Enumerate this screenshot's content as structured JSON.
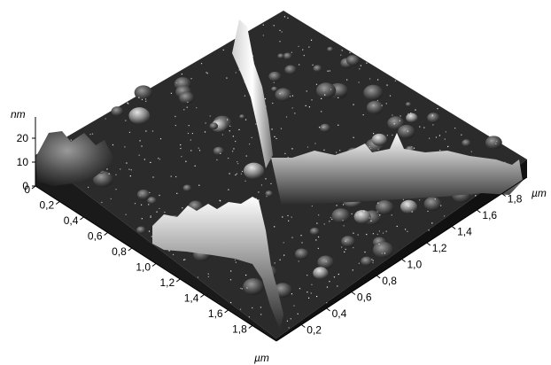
{
  "chart_data": {
    "type": "surface",
    "title": "",
    "z_axis": {
      "unit": "nm",
      "ticks": [
        "0",
        "10",
        "20"
      ],
      "range": [
        0,
        25
      ]
    },
    "left_axis": {
      "unit": "µm",
      "ticks": [
        "0",
        "0,2",
        "0,4",
        "0,6",
        "0,8",
        "1,0",
        "1,2",
        "1,4",
        "1,6",
        "1,8"
      ],
      "range": [
        0,
        2
      ]
    },
    "right_axis": {
      "unit": "µm",
      "ticks": [
        "0,2",
        "0,4",
        "0,6",
        "0,8",
        "1,0",
        "1,2",
        "1,4",
        "1,6",
        "1,8"
      ],
      "range": [
        0,
        2
      ]
    },
    "colormap": [
      "#000000",
      "#ffffff"
    ],
    "features": [
      {
        "kind": "ridge",
        "along": "left_axis",
        "at": 1.15,
        "height": 24
      },
      {
        "kind": "ridge",
        "along": "right_axis",
        "at": 0.9,
        "height": 18
      }
    ]
  }
}
